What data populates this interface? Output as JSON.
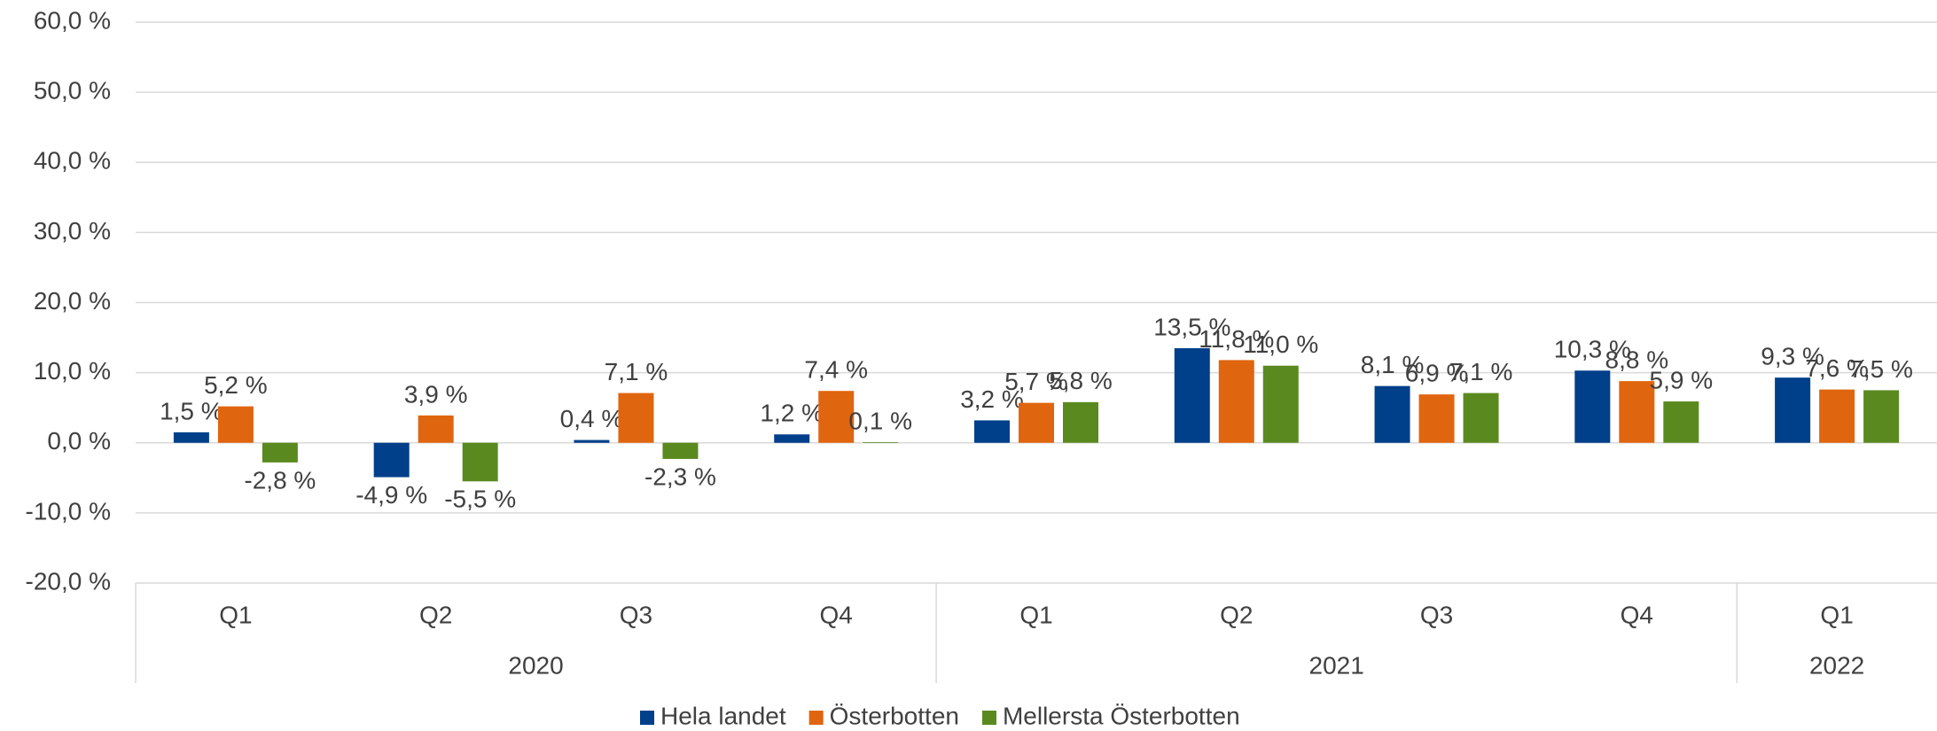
{
  "chart_data": {
    "type": "bar",
    "categories": [
      "Q1",
      "Q2",
      "Q3",
      "Q4",
      "Q1",
      "Q2",
      "Q3",
      "Q4",
      "Q1"
    ],
    "x_groups": [
      {
        "label": "2020",
        "count": 4
      },
      {
        "label": "2021",
        "count": 4
      },
      {
        "label": "2022",
        "count": 1
      }
    ],
    "series": [
      {
        "name": "Hela landet",
        "color": "#003f8a",
        "values": [
          1.5,
          -4.9,
          0.4,
          1.2,
          3.2,
          13.5,
          8.1,
          10.3,
          9.3
        ],
        "value_labels": [
          "1,5 %",
          "-4,9 %",
          "0,4 %",
          "1,2 %",
          "3,2 %",
          "13,5 %",
          "8,1 %",
          "10,3 %",
          "9,3 %"
        ]
      },
      {
        "name": "Österbotten",
        "color": "#e0650f",
        "values": [
          5.2,
          3.9,
          7.1,
          7.4,
          5.7,
          11.8,
          6.9,
          8.8,
          7.6
        ],
        "value_labels": [
          "5,2 %",
          "3,9 %",
          "7,1 %",
          "7,4 %",
          "5,7 %",
          "11,8 %",
          "6,9 %",
          "8,8 %",
          "7,6 %"
        ]
      },
      {
        "name": "Mellersta Österbotten",
        "color": "#5a8a1f",
        "values": [
          -2.8,
          -5.5,
          -2.3,
          0.1,
          5.8,
          11.0,
          7.1,
          5.9,
          7.5
        ],
        "value_labels": [
          "-2,8 %",
          "-5,5 %",
          "-2,3 %",
          "0,1 %",
          "5,8 %",
          "11,0 %",
          "7,1 %",
          "5,9 %",
          "7,5 %"
        ]
      }
    ],
    "ylim": [
      -20,
      60
    ],
    "yticks": [
      {
        "value": -20,
        "label": "-20,0 %"
      },
      {
        "value": -10,
        "label": "-10,0 %"
      },
      {
        "value": 0,
        "label": "0,0 %"
      },
      {
        "value": 10,
        "label": "10,0 %"
      },
      {
        "value": 20,
        "label": "20,0 %"
      },
      {
        "value": 30,
        "label": "30,0 %"
      },
      {
        "value": 40,
        "label": "40,0 %"
      },
      {
        "value": 50,
        "label": "50,0 %"
      },
      {
        "value": 60,
        "label": "60,0 %"
      }
    ],
    "grid": true,
    "legend": "bottom"
  }
}
